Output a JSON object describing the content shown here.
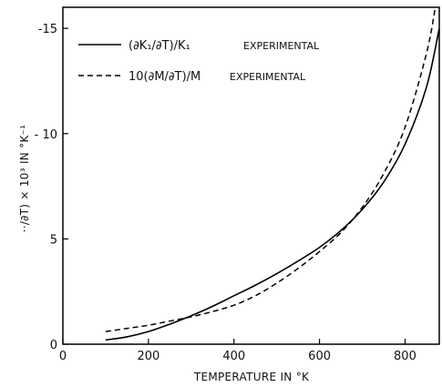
{
  "chart_data": {
    "type": "line",
    "xlabel": "TEMPERATURE IN °K",
    "ylabel": "··/∂T) × 10³ IN °K⁻¹",
    "xlim": [
      0,
      880
    ],
    "ylim": [
      0,
      16
    ],
    "y_tick_sign_prefix": "-",
    "x_ticks": [
      {
        "value": 0,
        "label": "0"
      },
      {
        "value": 200,
        "label": "200"
      },
      {
        "value": 400,
        "label": "400"
      },
      {
        "value": 600,
        "label": "600"
      },
      {
        "value": 800,
        "label": "800"
      }
    ],
    "y_ticks": [
      {
        "value": 0,
        "label": "0"
      },
      {
        "value": 5,
        "label": "5"
      },
      {
        "value": 10,
        "label": "- 10"
      },
      {
        "value": 15,
        "label": "-15"
      }
    ],
    "legend_position": "top-left",
    "series": [
      {
        "name": "(∂K₁/∂T)/K₁",
        "name_suffix": "EXPERIMENTAL",
        "style": "solid",
        "x": [
          100,
          150,
          200,
          250,
          300,
          350,
          400,
          450,
          500,
          550,
          600,
          650,
          700,
          750,
          800,
          850,
          880
        ],
        "y": [
          0.2,
          0.35,
          0.6,
          0.95,
          1.35,
          1.8,
          2.3,
          2.8,
          3.35,
          3.95,
          4.6,
          5.4,
          6.4,
          7.7,
          9.5,
          12.2,
          15.0
        ]
      },
      {
        "name": "10(∂M/∂T)/M",
        "name_suffix": "EXPERIMENTAL",
        "style": "dashed",
        "x": [
          100,
          150,
          200,
          250,
          300,
          350,
          400,
          450,
          500,
          550,
          600,
          650,
          700,
          750,
          800,
          850,
          870
        ],
        "y": [
          0.6,
          0.75,
          0.9,
          1.1,
          1.3,
          1.55,
          1.85,
          2.3,
          2.9,
          3.6,
          4.4,
          5.3,
          6.5,
          8.1,
          10.3,
          13.8,
          15.9
        ]
      }
    ]
  }
}
